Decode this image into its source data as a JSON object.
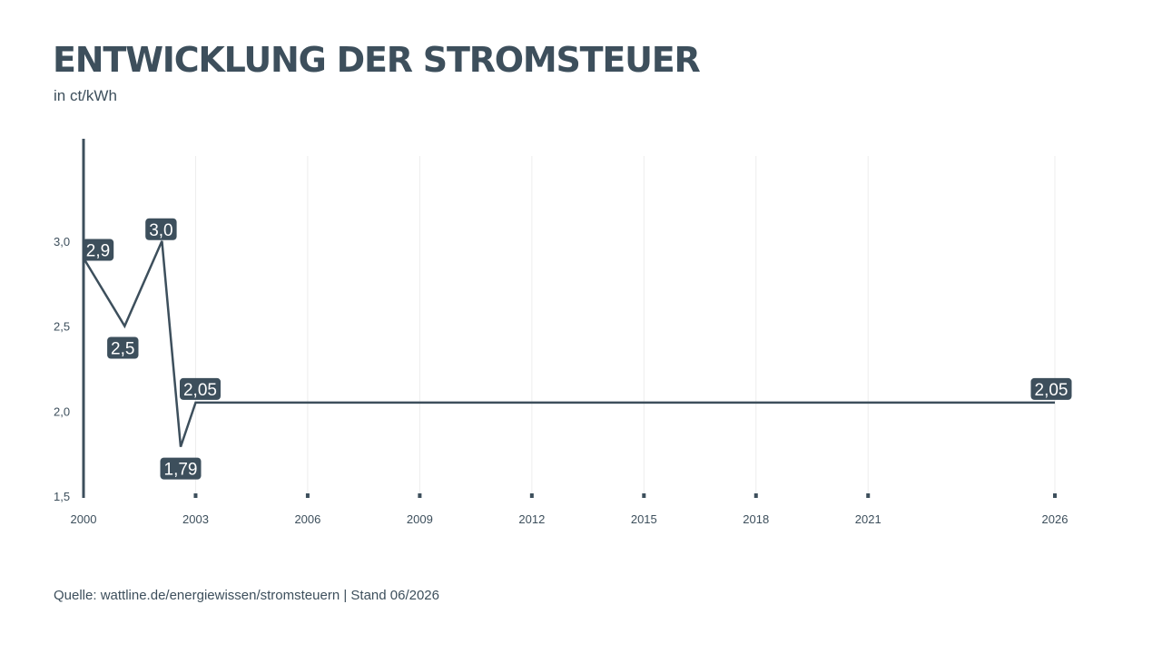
{
  "header": {
    "title": "ENTWICKLUNG DER STROMSTEUER",
    "subtitle": "in ct/kWh"
  },
  "footer": {
    "source": "Quelle: wattline.de/energiewissen/stromsteuern | Stand 06/2026"
  },
  "colors": {
    "line": "#3d4f5c",
    "label_bg": "#3d4f5c",
    "label_text": "#ffffff",
    "grid": "#ededed"
  },
  "chart_data": {
    "type": "line",
    "title": "ENTWICKLUNG DER STROMSTEUER",
    "ylabel": "in ct/kWh",
    "xlabel": "",
    "xlim": [
      2000,
      2026
    ],
    "ylim": [
      1.5,
      3.5
    ],
    "grid": true,
    "x_ticks": [
      2000,
      2003,
      2006,
      2009,
      2012,
      2015,
      2018,
      2021,
      2026
    ],
    "x_tick_labels": [
      "2000",
      "2003",
      "2006",
      "2009",
      "2012",
      "2015",
      "2018",
      "2021",
      "2026"
    ],
    "y_ticks": [
      1.5,
      2.0,
      2.5,
      3.0
    ],
    "y_tick_labels": [
      "1,5",
      "2,0",
      "2,5",
      "3,0"
    ],
    "series": [
      {
        "points": [
          {
            "x": 2000,
            "y": 2.9,
            "label": "2,9"
          },
          {
            "x": 2001.1,
            "y": 2.5,
            "label": "2,5"
          },
          {
            "x": 2002.1,
            "y": 3.0,
            "label": "3,0"
          },
          {
            "x": 2002.6,
            "y": 1.79,
            "label": "1,79"
          },
          {
            "x": 2003,
            "y": 2.05,
            "label": "2,05"
          },
          {
            "x": 2026,
            "y": 2.05,
            "label": "2,05"
          }
        ]
      }
    ]
  }
}
